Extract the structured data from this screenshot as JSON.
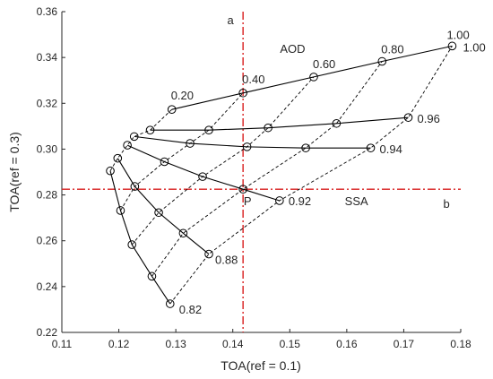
{
  "chart_data": {
    "type": "scatter",
    "title": "",
    "xlabel": "TOA(ref = 0.1)",
    "ylabel": "TOA(ref = 0.3)",
    "xlim": [
      0.11,
      0.18
    ],
    "ylim": [
      0.22,
      0.36
    ],
    "xticks": [
      "0.11",
      "0.12",
      "0.13",
      "0.14",
      "0.15",
      "0.16",
      "0.17",
      "0.18"
    ],
    "yticks": [
      "0.22",
      "0.24",
      "0.26",
      "0.28",
      "0.30",
      "0.32",
      "0.34",
      "0.36"
    ],
    "grid": false,
    "colors": {
      "curve": "#000000",
      "marker": "#000000",
      "reference": "#d81e1e"
    },
    "aod_levels": [
      "0.20",
      "0.40",
      "0.60",
      "0.80",
      "1.00"
    ],
    "ssa_levels": [
      "0.82",
      "0.88",
      "0.92",
      "0.94",
      "0.96",
      "1.00"
    ],
    "lut": {
      "0.82": [
        [
          0.1185,
          0.2905
        ],
        [
          0.1203,
          0.2732
        ],
        [
          0.1223,
          0.2583
        ],
        [
          0.1258,
          0.2445
        ],
        [
          0.129,
          0.2325
        ]
      ],
      "0.88": [
        [
          0.1198,
          0.296
        ],
        [
          0.1228,
          0.2837
        ],
        [
          0.127,
          0.2723
        ],
        [
          0.1313,
          0.2633
        ],
        [
          0.1358,
          0.2542
        ]
      ],
      "0.92": [
        [
          0.1215,
          0.3017
        ],
        [
          0.128,
          0.2945
        ],
        [
          0.1347,
          0.288
        ],
        [
          0.1418,
          0.2825
        ],
        [
          0.1482,
          0.2775
        ]
      ],
      "0.94": [
        [
          0.1227,
          0.3055
        ],
        [
          0.1325,
          0.3025
        ],
        [
          0.1425,
          0.301
        ],
        [
          0.1528,
          0.3005
        ],
        [
          0.1642,
          0.3005
        ]
      ],
      "0.96": [
        [
          0.1255,
          0.3083
        ],
        [
          0.1358,
          0.3083
        ],
        [
          0.1462,
          0.3093
        ],
        [
          0.1582,
          0.3112
        ],
        [
          0.1708,
          0.3138
        ]
      ],
      "1.00": [
        [
          0.1293,
          0.3173
        ],
        [
          0.1418,
          0.3245
        ],
        [
          0.1542,
          0.3315
        ],
        [
          0.1662,
          0.3383
        ],
        [
          0.1785,
          0.345
        ]
      ]
    },
    "reference_point": {
      "label": "P",
      "x": 0.1418,
      "y": 0.2825
    },
    "reference_lines": {
      "vertical": {
        "x": 0.1418,
        "label": "a"
      },
      "horizontal": {
        "y": 0.2825,
        "label": "b"
      }
    },
    "annotations": {
      "aod": "AOD",
      "ssa": "SSA"
    }
  }
}
